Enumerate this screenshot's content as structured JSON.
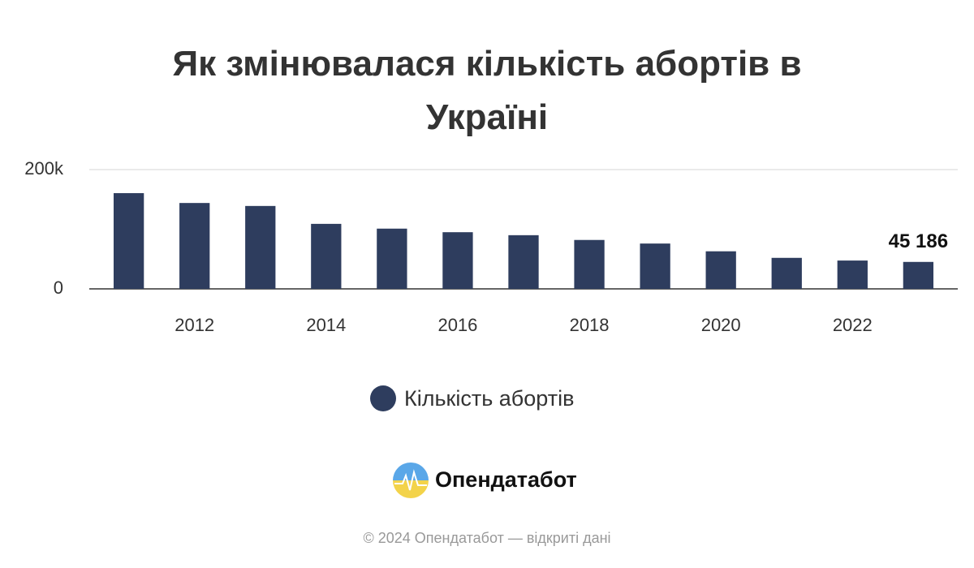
{
  "chart_data": {
    "type": "bar",
    "title": "Як змінювалася кількість абортів в Україні",
    "x": [
      2011,
      2012,
      2013,
      2014,
      2015,
      2016,
      2017,
      2018,
      2019,
      2020,
      2021,
      2022,
      2023
    ],
    "series": [
      {
        "name": "Кількість абортів",
        "color": "#2e3d5e",
        "values": [
          160500,
          144000,
          139000,
          109000,
          101000,
          95000,
          90000,
          82000,
          76000,
          63000,
          52000,
          47500,
          45186
        ],
        "value_labels": [
          null,
          null,
          null,
          null,
          null,
          null,
          null,
          null,
          null,
          null,
          null,
          null,
          "45 186"
        ]
      }
    ],
    "xlim": [
      2010.4,
      2023.6
    ],
    "xticks": [
      2012,
      2014,
      2016,
      2018,
      2020,
      2022
    ],
    "ylim": [
      0,
      200000
    ],
    "yticks": [
      0,
      {
        "value": 200000,
        "label": "200k"
      }
    ],
    "grid": true
  },
  "branding": {
    "logo_text": "Опендатабот",
    "footer": "© 2024 Опендатабот — відкриті дані"
  }
}
